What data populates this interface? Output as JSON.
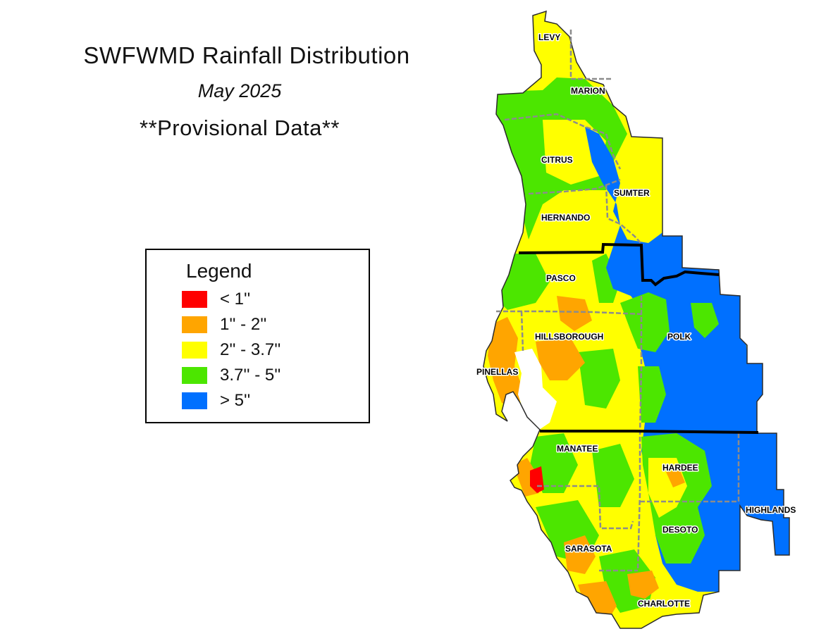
{
  "header": {
    "title": "SWFWMD Rainfall Distribution",
    "subtitle": "May 2025",
    "note": "**Provisional Data**"
  },
  "legend": {
    "title": "Legend",
    "items": [
      {
        "label": "<  1''",
        "color": "#ff0000"
      },
      {
        "label": "1'' - 2''",
        "color": "#ffa500"
      },
      {
        "label": "2'' - 3.7''",
        "color": "#ffff00"
      },
      {
        "label": "3.7'' - 5''",
        "color": "#4ce600"
      },
      {
        "label": "> 5''",
        "color": "#0070ff"
      }
    ]
  },
  "counties": [
    "LEVY",
    "MARION",
    "CITRUS",
    "SUMTER",
    "HERNANDO",
    "PASCO",
    "HILLSBOROUGH",
    "PINELLAS",
    "POLK",
    "MANATEE",
    "HARDEE",
    "HIGHLANDS",
    "DESOTO",
    "SARASOTA",
    "CHARLOTTE"
  ],
  "colors": {
    "red": "#ff0000",
    "orange": "#ffa500",
    "yellow": "#ffff00",
    "green": "#4ce600",
    "blue": "#0070ff",
    "county_border": "#8c8c8c",
    "region_border": "#000000"
  }
}
